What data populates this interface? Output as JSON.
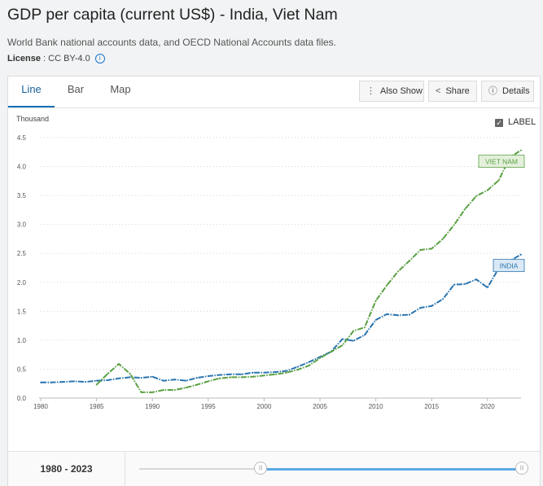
{
  "header": {
    "title": "GDP per capita (current US$) - India, Viet Nam",
    "source": "World Bank national accounts data, and OECD National Accounts data files.",
    "license_label": "License",
    "license_value": " : CC BY-4.0",
    "info_icon": "i"
  },
  "tabs": [
    {
      "label": "Line",
      "active": true
    },
    {
      "label": "Bar",
      "active": false
    },
    {
      "label": "Map",
      "active": false
    }
  ],
  "toolbar": {
    "also_show": "Also Show",
    "share": "Share",
    "details": "Details"
  },
  "label_toggle": {
    "checked": true,
    "text": "LABEL"
  },
  "range": {
    "label": "1980 - 2023",
    "start": 1980,
    "end": 2023,
    "min": 1960,
    "max": 2023
  },
  "colors": {
    "india": "#2a75b0",
    "vietnam": "#5aa043",
    "accent": "#1a6fb3"
  },
  "chart_data": {
    "type": "line",
    "title": "GDP per capita (current US$) - India, Viet Nam",
    "ylabel": "Thousand",
    "xlabel": "",
    "ylim": [
      0,
      4.5
    ],
    "xlim": [
      1980,
      2023
    ],
    "yticks": [
      0,
      0.5,
      1,
      1.5,
      2,
      2.5,
      3,
      3.5,
      4,
      4.5
    ],
    "ytick_labels": [
      "0.0",
      "0.5",
      "1.0",
      "1.5",
      "2.0",
      "2.5",
      "3.0",
      "3.5",
      "4.0",
      "4.5"
    ],
    "xticks": [
      1980,
      1985,
      1990,
      1995,
      2000,
      2005,
      2010,
      2015,
      2020
    ],
    "xtick_labels": [
      "1980",
      "1985",
      "1990",
      "1995",
      "2000",
      "2005",
      "2010",
      "2015",
      "2020"
    ],
    "grid": true,
    "series": [
      {
        "name": "India",
        "label": "INDIA",
        "color": "#2a75b0",
        "x": [
          1980,
          1981,
          1982,
          1983,
          1984,
          1985,
          1986,
          1987,
          1988,
          1989,
          1990,
          1991,
          1992,
          1993,
          1994,
          1995,
          1996,
          1997,
          1998,
          1999,
          2000,
          2001,
          2002,
          2003,
          2004,
          2005,
          2006,
          2007,
          2008,
          2009,
          2010,
          2011,
          2012,
          2013,
          2014,
          2015,
          2016,
          2017,
          2018,
          2019,
          2020,
          2021,
          2022,
          2023
        ],
        "values": [
          0.27,
          0.27,
          0.28,
          0.29,
          0.28,
          0.3,
          0.31,
          0.34,
          0.36,
          0.35,
          0.37,
          0.3,
          0.32,
          0.3,
          0.35,
          0.38,
          0.4,
          0.41,
          0.41,
          0.44,
          0.44,
          0.45,
          0.47,
          0.54,
          0.62,
          0.71,
          0.8,
          1.02,
          0.99,
          1.09,
          1.35,
          1.45,
          1.43,
          1.44,
          1.56,
          1.59,
          1.71,
          1.96,
          1.97,
          2.05,
          1.91,
          2.24,
          2.37,
          2.48
        ]
      },
      {
        "name": "Viet Nam",
        "label": "VIET NAM",
        "color": "#5aa043",
        "x": [
          1985,
          1986,
          1987,
          1988,
          1989,
          1990,
          1991,
          1992,
          1993,
          1994,
          1995,
          1996,
          1997,
          1998,
          1999,
          2000,
          2001,
          2002,
          2003,
          2004,
          2005,
          2006,
          2007,
          2008,
          2009,
          2010,
          2011,
          2012,
          2013,
          2014,
          2015,
          2016,
          2017,
          2018,
          2019,
          2020,
          2021,
          2022,
          2023
        ],
        "values": [
          0.23,
          0.42,
          0.59,
          0.42,
          0.1,
          0.1,
          0.14,
          0.14,
          0.18,
          0.23,
          0.29,
          0.34,
          0.36,
          0.36,
          0.37,
          0.39,
          0.41,
          0.44,
          0.49,
          0.56,
          0.69,
          0.8,
          0.91,
          1.16,
          1.22,
          1.68,
          1.95,
          2.19,
          2.37,
          2.56,
          2.58,
          2.75,
          2.99,
          3.27,
          3.49,
          3.59,
          3.76,
          4.16,
          4.28
        ]
      }
    ]
  }
}
